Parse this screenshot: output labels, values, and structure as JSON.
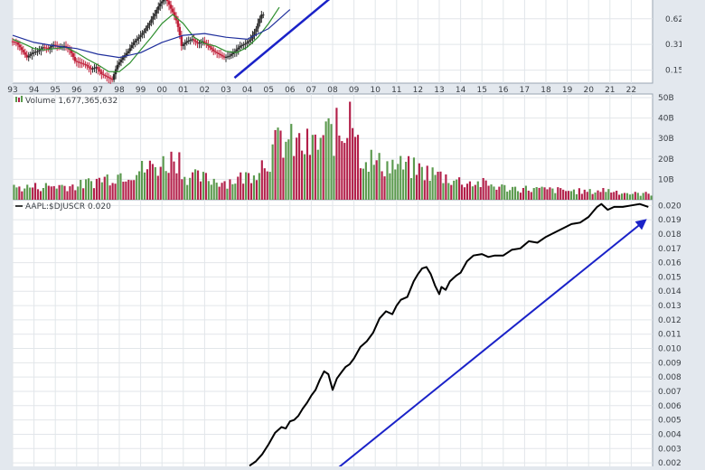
{
  "theme": {
    "page_bg": "#e3e8ee",
    "panel_bg": "#ffffff",
    "grid": "#e2e6ea",
    "border": "#9aa5b1",
    "label": "#3a3f45",
    "candle_up": "#2a2a2a",
    "candle_down": "#c0203a",
    "vol_up": "#5b9a4e",
    "vol_down": "#b3204a",
    "ma_short": "#2f8f2f",
    "ma_long": "#1f2f9c",
    "ratio_line": "#000000",
    "trend_arrow": "#1a22c8"
  },
  "chart_data": [
    {
      "type": "line",
      "panel": "price",
      "y_scale": "log",
      "ylim": [
        0.11,
        1.2
      ],
      "y_tick_labels": [
        "0.6250",
        "0.3125",
        "0.1562"
      ],
      "y_ticks": [
        0.625,
        0.3125,
        0.1562
      ],
      "x_tick_labels": [
        "93",
        "94",
        "95",
        "96",
        "97",
        "98",
        "99",
        "00",
        "01",
        "02",
        "03",
        "04",
        "05",
        "06",
        "07",
        "08",
        "09",
        "10",
        "11",
        "12",
        "13",
        "14",
        "15",
        "16",
        "17",
        "18",
        "19",
        "20",
        "21",
        "22"
      ],
      "xlim": [
        1993.0,
        2023.0
      ],
      "series": [
        {
          "kind": "candlestick-approx",
          "x": [
            1993.0,
            1993.25,
            1993.5,
            1993.75,
            1994.0,
            1994.25,
            1994.5,
            1994.75,
            1995.0,
            1995.25,
            1995.5,
            1995.75,
            1996.0,
            1996.25,
            1996.5,
            1996.75,
            1997.0,
            1997.25,
            1997.5,
            1997.75,
            1998.0,
            1998.25,
            1998.5,
            1998.75,
            1999.0,
            1999.25,
            1999.5,
            1999.75,
            2000.0,
            2000.25,
            2000.5,
            2000.75,
            2001.0,
            2001.25,
            2001.5,
            2001.75,
            2002.0,
            2002.25,
            2002.5,
            2002.75,
            2003.0,
            2003.25,
            2003.5,
            2003.75,
            2004.0,
            2004.25,
            2004.5,
            2004.75
          ],
          "values": [
            0.34,
            0.33,
            0.27,
            0.22,
            0.25,
            0.26,
            0.29,
            0.28,
            0.31,
            0.29,
            0.3,
            0.27,
            0.2,
            0.19,
            0.18,
            0.16,
            0.17,
            0.14,
            0.13,
            0.12,
            0.18,
            0.22,
            0.26,
            0.33,
            0.38,
            0.45,
            0.56,
            0.72,
            0.95,
            1.1,
            0.82,
            0.6,
            0.3,
            0.34,
            0.36,
            0.32,
            0.34,
            0.3,
            0.26,
            0.24,
            0.22,
            0.23,
            0.26,
            0.3,
            0.32,
            0.36,
            0.48,
            0.7
          ]
        },
        {
          "name": "",
          "kind": "ma-short",
          "x": [
            1993.0,
            1993.5,
            1994.0,
            1994.5,
            1995.0,
            1995.5,
            1996.0,
            1996.5,
            1997.0,
            1997.5,
            1998.0,
            1998.5,
            1999.0,
            1999.5,
            2000.0,
            2000.5,
            2001.0,
            2001.5,
            2002.0,
            2002.5,
            2003.0,
            2003.5,
            2004.0,
            2004.5,
            2005.0,
            2005.5
          ],
          "values": [
            0.36,
            0.32,
            0.28,
            0.27,
            0.28,
            0.29,
            0.25,
            0.21,
            0.18,
            0.15,
            0.15,
            0.19,
            0.27,
            0.38,
            0.55,
            0.7,
            0.55,
            0.38,
            0.32,
            0.3,
            0.26,
            0.25,
            0.29,
            0.38,
            0.55,
            0.85
          ]
        },
        {
          "name": "",
          "kind": "ma-long",
          "x": [
            1993.0,
            1994.0,
            1995.0,
            1996.0,
            1997.0,
            1998.0,
            1999.0,
            2000.0,
            2001.0,
            2002.0,
            2003.0,
            2004.0,
            2005.0,
            2006.0
          ],
          "values": [
            0.4,
            0.33,
            0.3,
            0.28,
            0.24,
            0.22,
            0.25,
            0.33,
            0.4,
            0.42,
            0.38,
            0.36,
            0.48,
            0.8
          ]
        }
      ],
      "annotation": {
        "type": "trend-arrow",
        "x": [
          2003.4,
          2008.2
        ],
        "y_frac": [
          0.94,
          -0.02
        ]
      }
    },
    {
      "type": "bar",
      "panel": "volume",
      "legend": "Volume 1,677,365,632",
      "y_tick_labels": [
        "50B",
        "40B",
        "30B",
        "20B",
        "10B"
      ],
      "y_ticks": [
        50,
        40,
        30,
        20,
        10
      ],
      "ylim": [
        0,
        50
      ],
      "bar_count": 240,
      "series": [
        {
          "name": "Volume",
          "unit": "billion shares",
          "x": [
            1993.0,
            1995.0,
            1996.0,
            1997.0,
            1998.0,
            1999.0,
            2000.0,
            2000.7,
            2001.0,
            2003.0,
            2004.0,
            2005.0,
            2005.5,
            2006.0,
            2007.0,
            2007.5,
            2008.0,
            2008.5,
            2008.8,
            2009.2,
            2010.0,
            2011.0,
            2012.0,
            2013.0,
            2014.0,
            2015.0,
            2016.0,
            2018.0,
            2020.0,
            2020.7,
            2022.0,
            2023.0
          ],
          "values": [
            6,
            7,
            7,
            10,
            13,
            15,
            18,
            22,
            12,
            9,
            12,
            22,
            30,
            28,
            26,
            31,
            34,
            32,
            48,
            24,
            18,
            17,
            15,
            12,
            9,
            8,
            6,
            5,
            4,
            5,
            3,
            3
          ]
        }
      ]
    },
    {
      "type": "line",
      "panel": "ratio",
      "legend": "AAPL:$DJUSCR 0.020",
      "y_tick_labels": [
        "0.020",
        "0.019",
        "0.018",
        "0.017",
        "0.016",
        "0.015",
        "0.014",
        "0.013",
        "0.012",
        "0.011",
        "0.010",
        "0.009",
        "0.008",
        "0.007",
        "0.006",
        "0.005",
        "0.004",
        "0.003",
        "0.002"
      ],
      "y_ticks": [
        0.02,
        0.019,
        0.018,
        0.017,
        0.016,
        0.015,
        0.014,
        0.013,
        0.012,
        0.011,
        0.01,
        0.009,
        0.008,
        0.007,
        0.006,
        0.005,
        0.004,
        0.003,
        0.002
      ],
      "ylim": [
        0.0015,
        0.0204
      ],
      "series": [
        {
          "name": "AAPL:$DJUSCR",
          "x": [
            2004.1,
            2004.4,
            2004.7,
            2005.0,
            2005.3,
            2005.6,
            2005.8,
            2006.0,
            2006.2,
            2006.4,
            2006.6,
            2006.8,
            2007.0,
            2007.2,
            2007.4,
            2007.6,
            2007.8,
            2008.0,
            2008.2,
            2008.4,
            2008.6,
            2008.8,
            2009.0,
            2009.3,
            2009.6,
            2009.9,
            2010.2,
            2010.5,
            2010.8,
            2011.0,
            2011.2,
            2011.5,
            2011.8,
            2012.0,
            2012.2,
            2012.4,
            2012.6,
            2012.8,
            2013.0,
            2013.1,
            2013.3,
            2013.5,
            2013.8,
            2014.0,
            2014.3,
            2014.6,
            2015.0,
            2015.3,
            2015.6,
            2016.0,
            2016.4,
            2016.8,
            2017.2,
            2017.6,
            2018.0,
            2018.4,
            2018.8,
            2019.2,
            2019.6,
            2020.0,
            2020.4,
            2020.6,
            2020.9,
            2021.2,
            2021.6,
            2022.0,
            2022.4,
            2022.8
          ],
          "values": [
            0.0018,
            0.0021,
            0.0026,
            0.0033,
            0.0041,
            0.0045,
            0.0044,
            0.0049,
            0.005,
            0.0053,
            0.0058,
            0.0062,
            0.0067,
            0.0071,
            0.0078,
            0.0084,
            0.0082,
            0.0071,
            0.0079,
            0.0083,
            0.0087,
            0.0089,
            0.0093,
            0.0101,
            0.0105,
            0.0111,
            0.0121,
            0.0126,
            0.0124,
            0.013,
            0.0134,
            0.0136,
            0.0147,
            0.0152,
            0.0156,
            0.0157,
            0.0152,
            0.0144,
            0.0138,
            0.0143,
            0.0141,
            0.0147,
            0.0151,
            0.0153,
            0.0161,
            0.0165,
            0.0166,
            0.0164,
            0.0165,
            0.0165,
            0.0169,
            0.017,
            0.0175,
            0.0174,
            0.0178,
            0.0181,
            0.0184,
            0.0187,
            0.0188,
            0.0192,
            0.0199,
            0.0201,
            0.0197,
            0.0199,
            0.0199,
            0.02,
            0.0201,
            0.0199
          ]
        }
      ],
      "annotation": {
        "type": "trend-arrow",
        "x": [
          2008.3,
          2022.6
        ],
        "y": [
          0.0017,
          0.0189
        ]
      }
    }
  ]
}
